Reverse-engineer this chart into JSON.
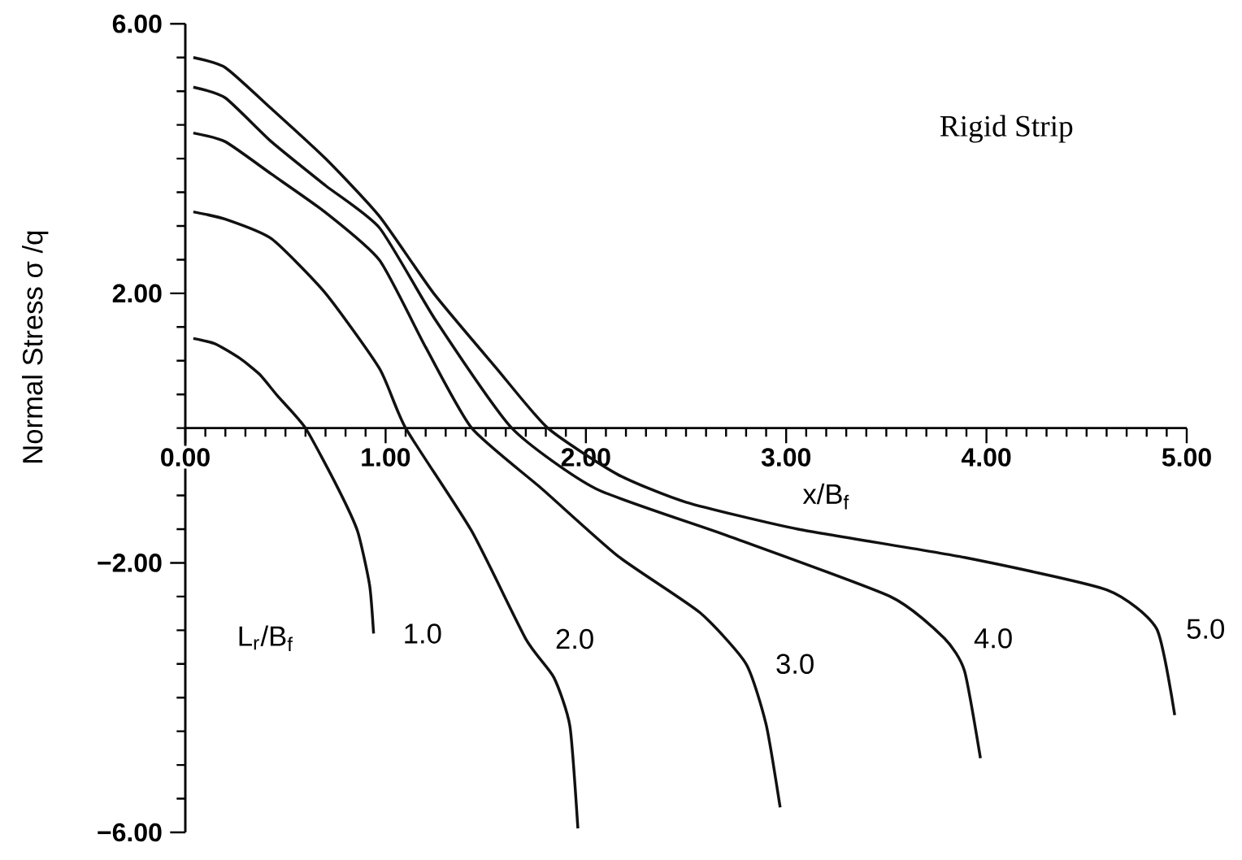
{
  "chart_data": {
    "type": "line",
    "title": "Rigid Strip",
    "xlabel": "x/B$_{f}$",
    "ylabel": "Normal  Stress  σ /q",
    "legend_title": "L$_{r}$/B$_{f}$",
    "xlim": [
      0,
      5
    ],
    "ylim": [
      -6,
      6
    ],
    "xticks": [
      {
        "value": 0,
        "label": "0.00"
      },
      {
        "value": 1,
        "label": "1.00"
      },
      {
        "value": 2,
        "label": "2.00"
      },
      {
        "value": 3,
        "label": "3.00"
      },
      {
        "value": 4,
        "label": "4.00"
      },
      {
        "value": 5,
        "label": "5.00"
      }
    ],
    "yticks": [
      {
        "value": -6,
        "label": "−6.00"
      },
      {
        "value": -2,
        "label": "−2.00"
      },
      {
        "value": 2,
        "label": "2.00"
      },
      {
        "value": 6,
        "label": "6.00"
      }
    ],
    "grid": false,
    "marker": "none",
    "line_style": "solid",
    "series": [
      {
        "name": "1.0",
        "color": "#111111",
        "x": [
          0.04,
          0.15,
          0.27,
          0.37,
          0.46,
          0.6,
          0.76,
          0.86,
          0.92,
          0.94
        ],
        "values": [
          1.33,
          1.25,
          1.04,
          0.8,
          0.48,
          0,
          -0.88,
          -1.53,
          -2.33,
          -3.05
        ]
      },
      {
        "name": "2.0",
        "color": "#111111",
        "x": [
          0.04,
          0.2,
          0.43,
          0.7,
          0.97,
          1.1,
          1.43,
          1.7,
          1.84,
          1.92,
          1.96
        ],
        "values": [
          3.21,
          3.1,
          2.81,
          2.0,
          0.88,
          0,
          -1.53,
          -3.13,
          -3.7,
          -4.42,
          -5.94
        ]
      },
      {
        "name": "3.0",
        "color": "#111111",
        "x": [
          0.04,
          0.2,
          0.43,
          0.7,
          0.97,
          1.2,
          1.43,
          1.78,
          2.16,
          2.57,
          2.8,
          2.9,
          2.97
        ],
        "values": [
          4.38,
          4.25,
          3.77,
          3.2,
          2.49,
          1.2,
          0,
          -0.9,
          -1.9,
          -2.74,
          -3.5,
          -4.4,
          -5.63
        ]
      },
      {
        "name": "4.0",
        "color": "#111111",
        "x": [
          0.04,
          0.2,
          0.43,
          0.7,
          0.97,
          1.25,
          1.63,
          2.05,
          2.71,
          3.52,
          3.79,
          3.89,
          3.97
        ],
        "values": [
          5.06,
          4.9,
          4.25,
          3.6,
          2.97,
          1.6,
          0,
          -0.9,
          -1.6,
          -2.5,
          -3.12,
          -3.6,
          -4.9
        ]
      },
      {
        "name": "5.0",
        "color": "#111111",
        "x": [
          0.04,
          0.2,
          0.43,
          0.7,
          0.97,
          1.24,
          1.55,
          1.81,
          2.16,
          2.5,
          3.06,
          3.89,
          4.6,
          4.85,
          4.94
        ],
        "values": [
          5.5,
          5.35,
          4.74,
          4.0,
          3.14,
          2.0,
          0.9,
          0,
          -0.69,
          -1.1,
          -1.5,
          -1.92,
          -2.4,
          -2.98,
          -4.26
        ]
      }
    ]
  }
}
